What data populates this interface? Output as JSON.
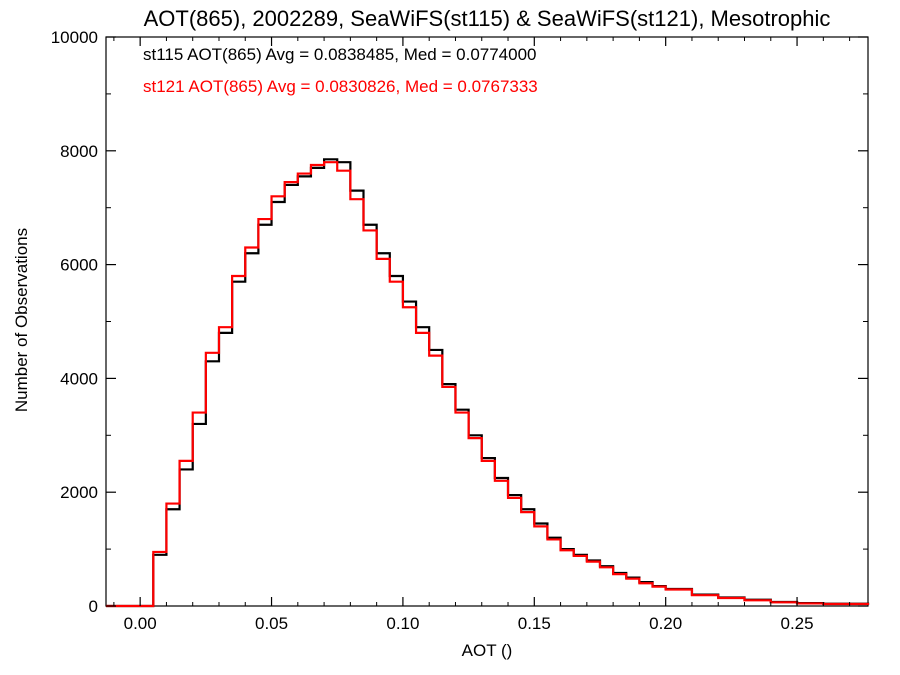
{
  "chart_data": {
    "type": "line",
    "title": "AOT(865), 2002289, SeaWiFS(st115) & SeaWiFS(st121), Mesotrophic",
    "xlabel": "AOT ()",
    "ylabel": "Number of Observations",
    "xlim": [
      -0.013,
      0.277
    ],
    "ylim": [
      0,
      10000
    ],
    "x_ticks": [
      0.0,
      0.05,
      0.1,
      0.15,
      0.2,
      0.25
    ],
    "x_tick_labels": [
      "0.00",
      "0.05",
      "0.10",
      "0.15",
      "0.20",
      "0.25"
    ],
    "y_ticks": [
      0,
      2000,
      4000,
      6000,
      8000,
      10000
    ],
    "y_tick_labels": [
      "0",
      "2000",
      "4000",
      "6000",
      "8000",
      "10000"
    ],
    "grid": false,
    "legend": "top-left",
    "series": [
      {
        "name": "st115",
        "annotation": "st115 AOT(865) Avg = 0.0838485, Med = 0.0774000",
        "color": "#000000",
        "x": [
          -0.013,
          0.0,
          0.005,
          0.01,
          0.015,
          0.02,
          0.025,
          0.03,
          0.035,
          0.04,
          0.045,
          0.05,
          0.055,
          0.06,
          0.065,
          0.07,
          0.075,
          0.08,
          0.085,
          0.09,
          0.095,
          0.1,
          0.105,
          0.11,
          0.115,
          0.12,
          0.125,
          0.13,
          0.135,
          0.14,
          0.145,
          0.15,
          0.155,
          0.16,
          0.165,
          0.17,
          0.175,
          0.18,
          0.185,
          0.19,
          0.195,
          0.2,
          0.21,
          0.22,
          0.23,
          0.24,
          0.25,
          0.26,
          0.277
        ],
        "y": [
          0,
          0,
          900,
          1700,
          2400,
          3200,
          4300,
          4800,
          5700,
          6200,
          6700,
          7100,
          7400,
          7550,
          7700,
          7850,
          7800,
          7300,
          6700,
          6200,
          5800,
          5350,
          4900,
          4500,
          3900,
          3450,
          3000,
          2600,
          2250,
          1950,
          1700,
          1450,
          1200,
          1000,
          900,
          800,
          700,
          580,
          500,
          420,
          350,
          300,
          200,
          150,
          110,
          70,
          50,
          40,
          20
        ]
      },
      {
        "name": "st121",
        "annotation": "st121 AOT(865) Avg = 0.0830826, Med = 0.0767333",
        "color": "#ff0000",
        "x": [
          -0.013,
          0.0,
          0.005,
          0.01,
          0.015,
          0.02,
          0.025,
          0.03,
          0.035,
          0.04,
          0.045,
          0.05,
          0.055,
          0.06,
          0.065,
          0.07,
          0.075,
          0.08,
          0.085,
          0.09,
          0.095,
          0.1,
          0.105,
          0.11,
          0.115,
          0.12,
          0.125,
          0.13,
          0.135,
          0.14,
          0.145,
          0.15,
          0.155,
          0.16,
          0.165,
          0.17,
          0.175,
          0.18,
          0.185,
          0.19,
          0.195,
          0.2,
          0.21,
          0.22,
          0.23,
          0.24,
          0.25,
          0.26,
          0.277
        ],
        "y": [
          0,
          0,
          950,
          1800,
          2550,
          3400,
          4450,
          4900,
          5800,
          6300,
          6800,
          7200,
          7450,
          7600,
          7750,
          7800,
          7650,
          7150,
          6600,
          6100,
          5700,
          5250,
          4800,
          4400,
          3850,
          3400,
          2950,
          2550,
          2200,
          1900,
          1650,
          1400,
          1170,
          980,
          880,
          780,
          680,
          560,
          480,
          400,
          340,
          290,
          190,
          140,
          100,
          65,
          45,
          35,
          18
        ]
      }
    ]
  }
}
